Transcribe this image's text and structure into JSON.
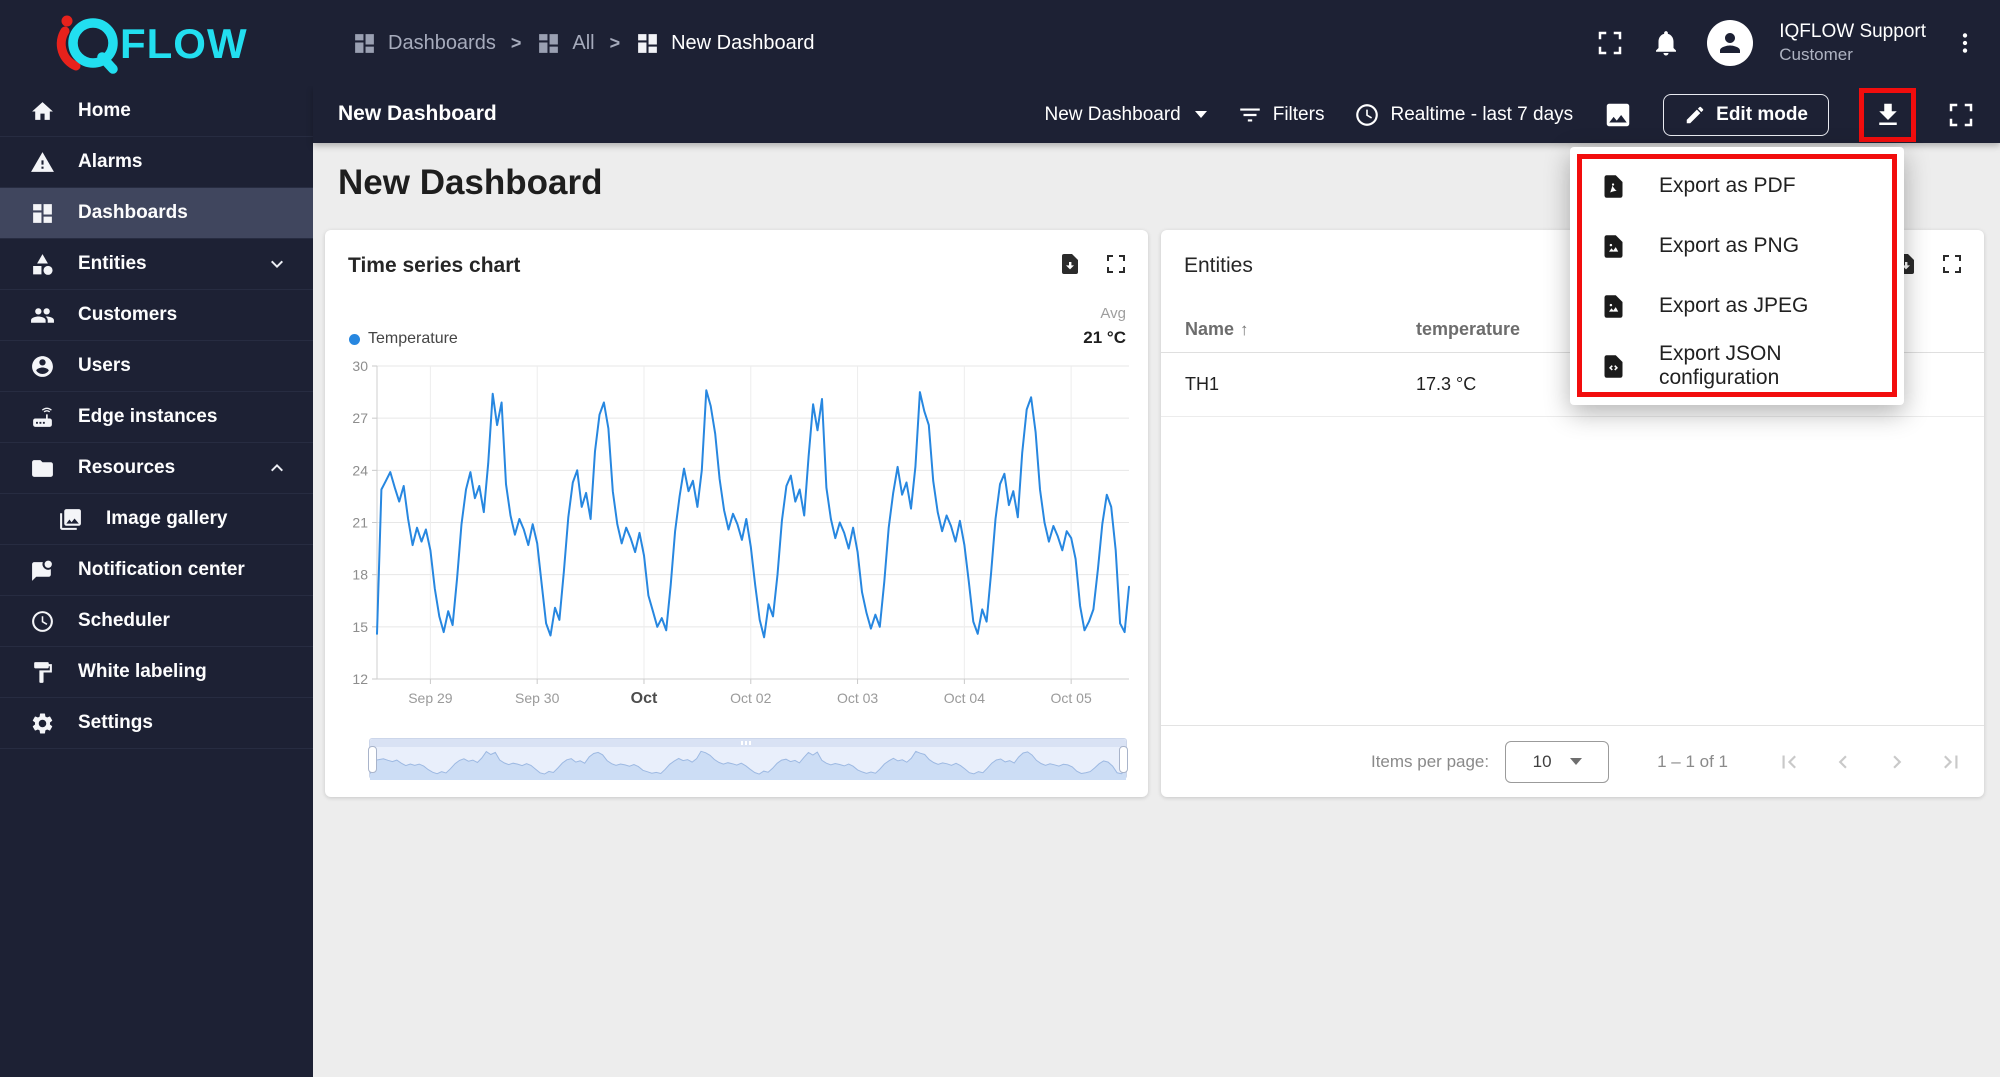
{
  "brand": {
    "wordmark": "FLOW"
  },
  "colors": {
    "topbar_bg": "#1d2134",
    "sidebar_selected": "#40465e",
    "accent_blue": "#2787e0",
    "annotation_red": "#f20d0d",
    "brand_cyan": "#22dff0",
    "brand_red": "#e8221c",
    "content_bg": "#ededed"
  },
  "topbar": {
    "breadcrumb": [
      {
        "label": "Dashboards",
        "icon": "dashboards-grid"
      },
      {
        "label": "All",
        "icon": "dashboards-grid"
      },
      {
        "label": "New Dashboard",
        "icon": "dashboards-grid"
      }
    ],
    "breadcrumb_separator": ">",
    "user": {
      "name": "IQFLOW Support",
      "role": "Customer"
    }
  },
  "toolbar": {
    "title": "New Dashboard",
    "state_selector": "New Dashboard",
    "filters_label": "Filters",
    "timewindow_label": "Realtime - last 7 days",
    "edit_mode_label": "Edit mode"
  },
  "sidebar": {
    "items": [
      {
        "label": "Home",
        "icon": "home"
      },
      {
        "label": "Alarms",
        "icon": "warning-triangle"
      },
      {
        "label": "Dashboards",
        "icon": "dashboards-grid",
        "selected": true
      },
      {
        "label": "Entities",
        "icon": "category-shapes",
        "chevron": "down"
      },
      {
        "label": "Customers",
        "icon": "people"
      },
      {
        "label": "Users",
        "icon": "account-circle"
      },
      {
        "label": "Edge instances",
        "icon": "router"
      },
      {
        "label": "Resources",
        "icon": "folder",
        "chevron": "up"
      },
      {
        "label": "Image gallery",
        "icon": "photo-library",
        "child": true
      },
      {
        "label": "Notification center",
        "icon": "chat-bubble-dot"
      },
      {
        "label": "Scheduler",
        "icon": "clock"
      },
      {
        "label": "White labeling",
        "icon": "paint-roller"
      },
      {
        "label": "Settings",
        "icon": "gear"
      }
    ]
  },
  "page": {
    "heading": "New Dashboard"
  },
  "chart_widget": {
    "title": "Time series chart",
    "legend": {
      "series_label": "Temperature",
      "agg_header": "Avg",
      "agg_value": "21 °C"
    }
  },
  "chart_data": {
    "type": "line",
    "title": "Time series chart",
    "x_start": "Sep 28 12:00",
    "x_step_hours": 1,
    "x_tick_indices": [
      12,
      36,
      60,
      84,
      108,
      132,
      156
    ],
    "x_tick_labels": [
      "Sep 29",
      "Sep 30",
      "Oct",
      "Oct 02",
      "Oct 03",
      "Oct 04",
      "Oct 05"
    ],
    "ylim": [
      12,
      30
    ],
    "yticks": [
      12,
      15,
      18,
      21,
      24,
      27,
      30
    ],
    "grid": true,
    "legend_position": "top",
    "series": [
      {
        "name": "Temperature",
        "unit": "°C",
        "color": "#2787e0",
        "avg": "21 °C",
        "values": [
          14.6,
          22.9,
          23.4,
          23.9,
          23.0,
          22.2,
          23.1,
          21.2,
          19.7,
          20.7,
          19.9,
          20.6,
          19.4,
          17.2,
          15.6,
          14.7,
          15.9,
          15.1,
          17.8,
          20.9,
          22.9,
          23.9,
          22.4,
          23.1,
          21.6,
          24.4,
          28.4,
          26.6,
          27.9,
          23.2,
          21.4,
          20.3,
          21.2,
          20.6,
          19.7,
          20.9,
          19.8,
          17.5,
          15.2,
          14.5,
          16.1,
          15.4,
          18.2,
          21.3,
          23.3,
          24.0,
          21.9,
          22.7,
          21.2,
          25.1,
          27.2,
          27.9,
          26.4,
          22.8,
          20.9,
          19.8,
          20.7,
          20.1,
          19.3,
          20.4,
          19.1,
          16.8,
          15.9,
          15.0,
          15.5,
          14.8,
          17.4,
          20.5,
          22.5,
          24.1,
          22.8,
          23.4,
          21.9,
          24.0,
          28.6,
          27.7,
          26.1,
          23.5,
          21.7,
          20.6,
          21.5,
          20.9,
          20.0,
          21.2,
          19.6,
          17.4,
          15.4,
          14.4,
          16.3,
          15.6,
          18.0,
          21.1,
          23.1,
          23.7,
          22.2,
          22.9,
          21.4,
          24.8,
          27.8,
          26.3,
          28.1,
          23.0,
          21.2,
          20.1,
          21.0,
          20.4,
          19.5,
          20.7,
          19.3,
          17.0,
          15.8,
          14.9,
          15.7,
          15.0,
          17.6,
          20.7,
          22.7,
          24.2,
          22.6,
          23.3,
          21.8,
          24.2,
          28.5,
          27.4,
          26.6,
          23.4,
          21.6,
          20.5,
          21.4,
          20.8,
          19.9,
          21.1,
          19.7,
          17.6,
          15.3,
          14.6,
          16.0,
          15.3,
          18.1,
          21.2,
          23.2,
          23.8,
          22.0,
          22.8,
          21.3,
          25.0,
          27.5,
          28.2,
          26.2,
          22.9,
          21.0,
          19.9,
          20.8,
          20.2,
          19.4,
          20.5,
          20.1,
          18.9,
          16.2,
          14.8,
          15.3,
          16.0,
          18.3,
          20.9,
          22.6,
          21.9,
          19.4,
          15.2,
          14.7,
          17.3
        ]
      }
    ]
  },
  "entities_widget": {
    "title": "Entities",
    "columns": [
      "Name",
      "temperature"
    ],
    "sort_arrow": "↑",
    "rows": [
      {
        "name": "TH1",
        "temperature": "17.3 °C"
      }
    ],
    "pagination": {
      "label": "Items per page:",
      "page_size": "10",
      "range": "1 – 1 of 1"
    }
  },
  "export_menu": {
    "items": [
      {
        "label": "Export as PDF",
        "icon": "pdf-file"
      },
      {
        "label": "Export as PNG",
        "icon": "image-file"
      },
      {
        "label": "Export as JPEG",
        "icon": "image-file"
      },
      {
        "label": "Export JSON configuration",
        "icon": "code-file"
      }
    ]
  }
}
